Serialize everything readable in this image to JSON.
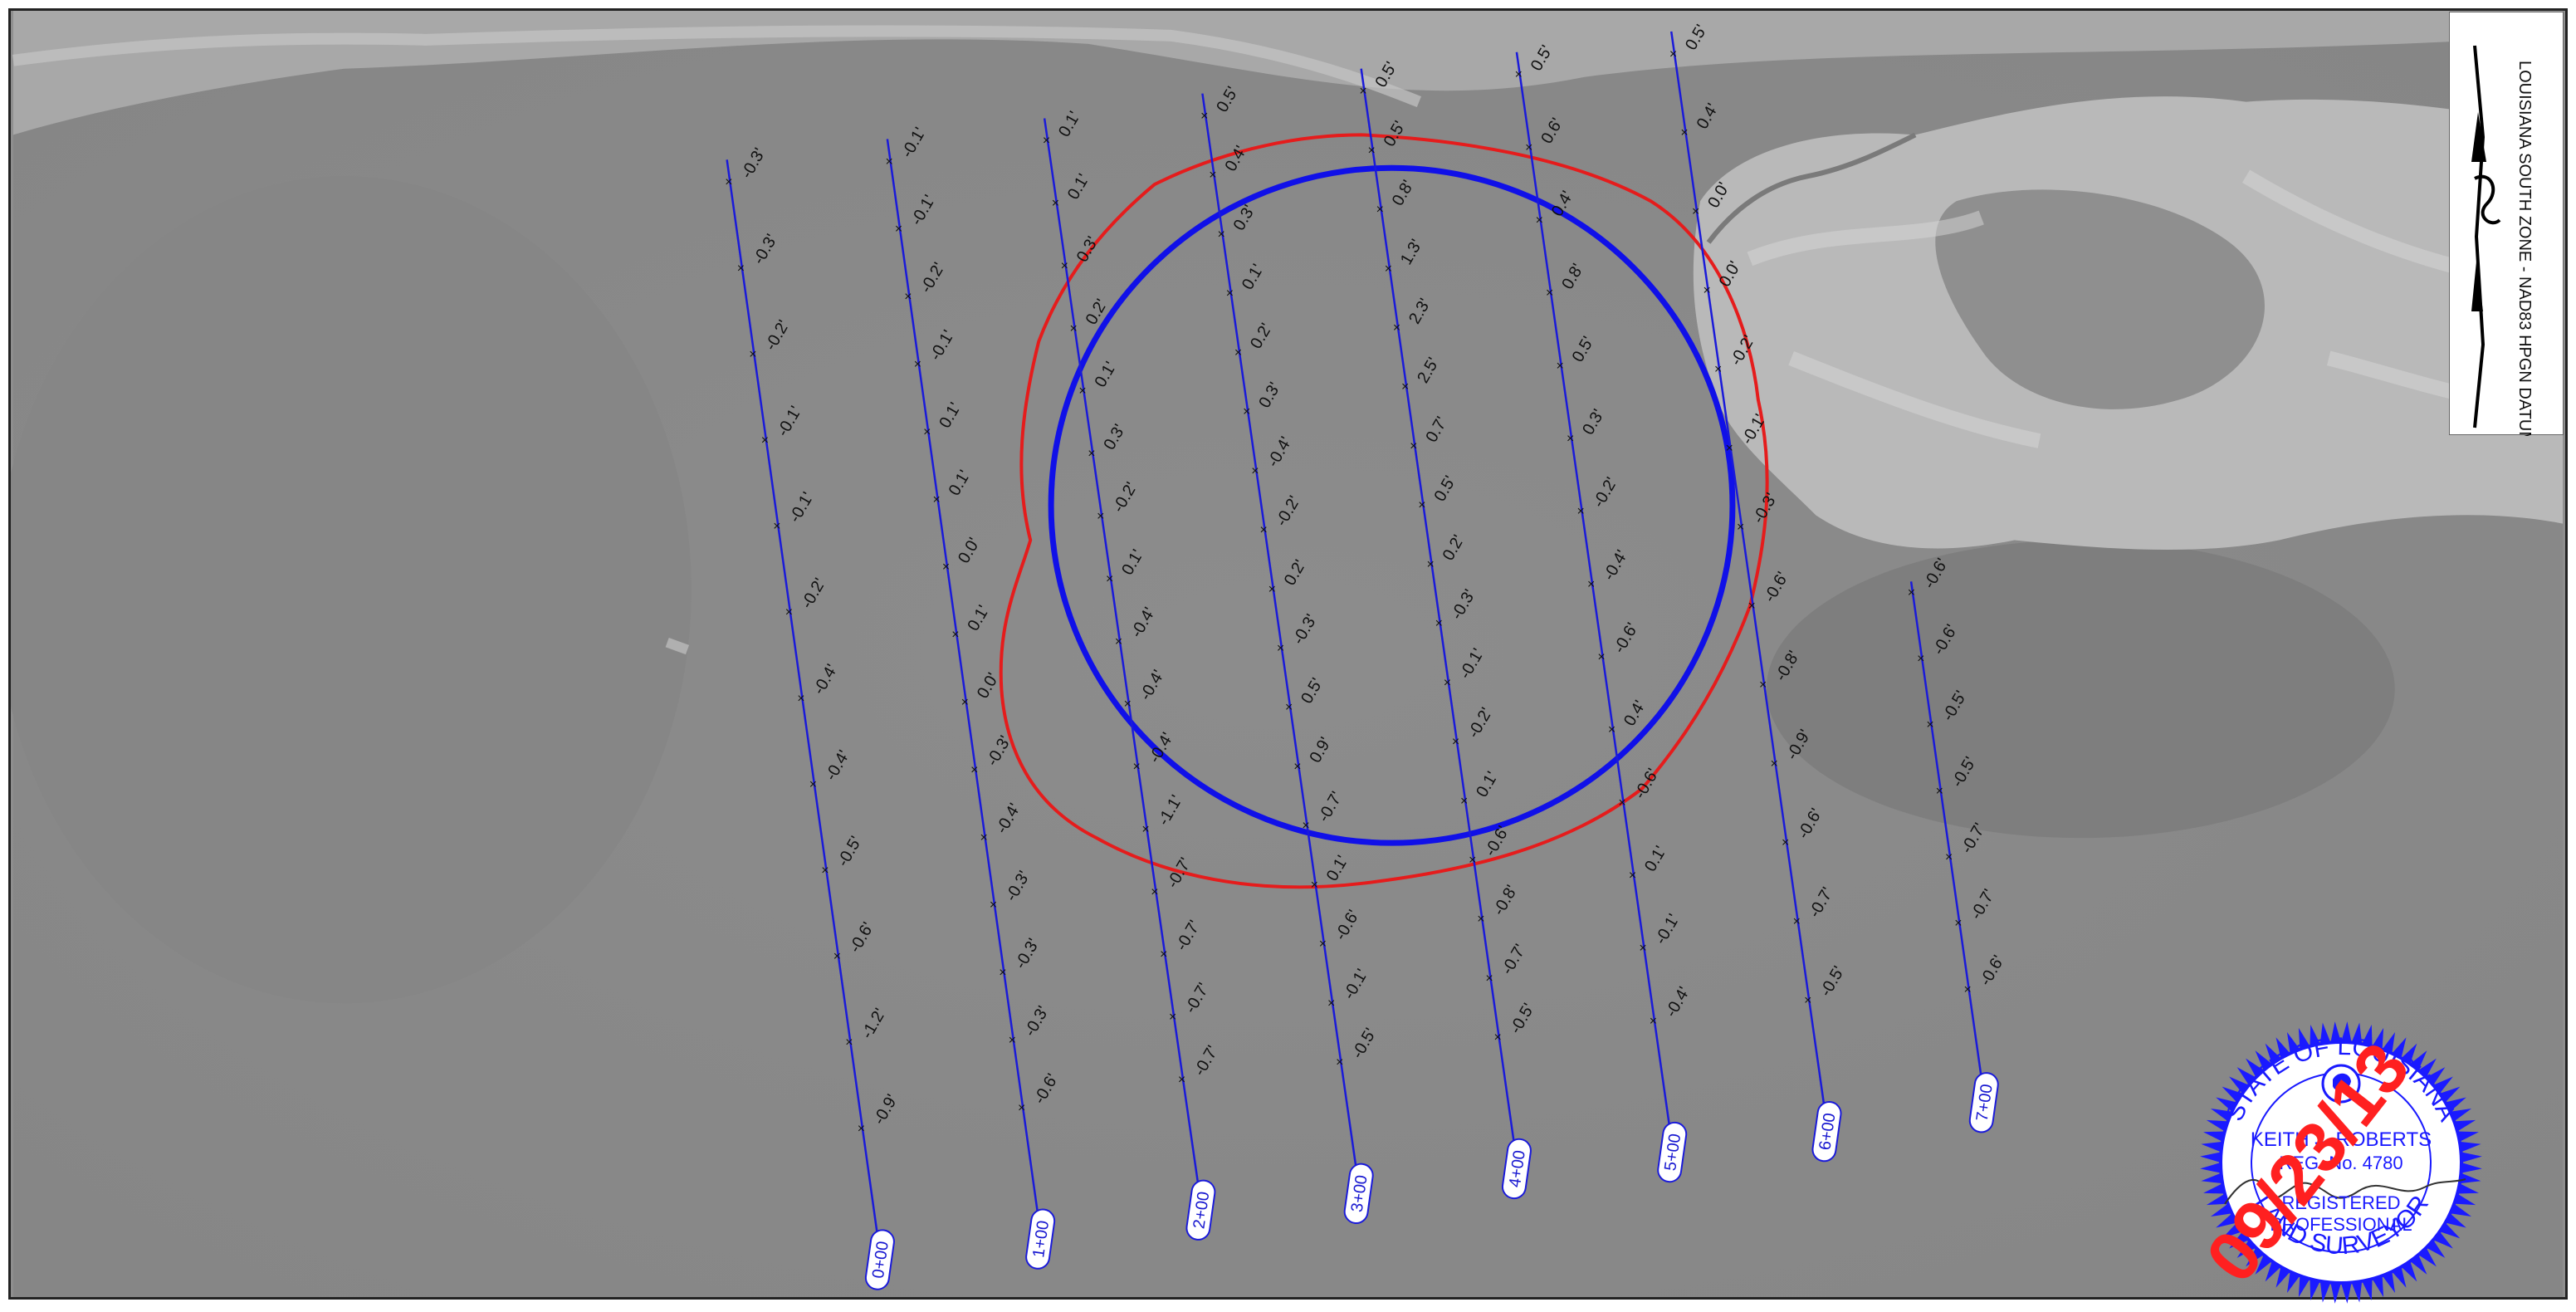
{
  "datum_label": "LOUISIANA SOUTH ZONE - NAD83 HPGN DATUM",
  "stations": [
    {
      "label": "0+00",
      "elevations": [
        "-0.3'",
        "-0.3'",
        "-0.2'",
        "-0.1'",
        "-0.1'",
        "-0.2'",
        "-0.4'",
        "-0.4'",
        "-0.5'",
        "-0.6'",
        "-1.2'",
        "-0.9'"
      ]
    },
    {
      "label": "1+00",
      "elevations": [
        "-0.1'",
        "-0.1'",
        "-0.2'",
        "-0.1'",
        "0.1'",
        "0.1'",
        "0.0'",
        "0.1'",
        "0.0'",
        "-0.3'",
        "-0.4'",
        "-0.3'",
        "-0.3'",
        "-0.3'",
        "-0.6'"
      ]
    },
    {
      "label": "2+00",
      "elevations": [
        "0.1'",
        "0.1'",
        "0.3'",
        "0.2'",
        "0.1'",
        "0.3'",
        "-0.2'",
        "0.1'",
        "-0.4'",
        "-0.4'",
        "-0.4'",
        "-1.1'",
        "-0.7'",
        "-0.7'",
        "-0.7'",
        "-0.7'"
      ]
    },
    {
      "label": "3+00",
      "elevations": [
        "0.5'",
        "0.4'",
        "0.3'",
        "0.1'",
        "0.2'",
        "0.3'",
        "-0.4'",
        "-0.2'",
        "0.2'",
        "-0.3'",
        "0.5'",
        "0.9'",
        "-0.7'",
        "0.1'",
        "-0.6'",
        "-0.1'",
        "-0.5'"
      ]
    },
    {
      "label": "4+00",
      "elevations": [
        "0.5'",
        "0.5'",
        "0.8'",
        "1.3'",
        "2.3'",
        "2.5'",
        "0.7'",
        "0.5'",
        "0.2'",
        "-0.3'",
        "-0.1'",
        "-0.2'",
        "0.1'",
        "-0.6'",
        "-0.8'",
        "-0.7'",
        "-0.5'"
      ]
    },
    {
      "label": "5+00",
      "elevations": [
        "0.5'",
        "0.6'",
        "0.4'",
        "0.8'",
        "0.5'",
        "0.3'",
        "-0.2'",
        "-0.4'",
        "-0.6'",
        "0.4'",
        "-0.6'",
        "0.1'",
        "-0.1'",
        "-0.4'"
      ]
    },
    {
      "label": "6+00",
      "elevations": [
        "0.5'",
        "0.4'",
        "0.0'",
        "0.0'",
        "-0.2'",
        "-0.1'",
        "-0.3'",
        "-0.6'",
        "-0.8'",
        "-0.9'",
        "-0.6'",
        "-0.7'",
        "-0.5'"
      ]
    },
    {
      "label": "7+00",
      "elevations": [
        "-0.6'",
        "-0.6'",
        "-0.5'",
        "-0.5'",
        "-0.7'",
        "-0.7'",
        "-0.6'"
      ]
    }
  ],
  "seal": {
    "state_text": "STATE OF LOUISIANA",
    "name": "KEITH J. ROBERTS",
    "reg_no": "REG. No. 4780",
    "registered": "REGISTERED",
    "professional": "PROFESSIONAL",
    "surveyor": "LAND SURVEYOR",
    "date": "09/23/13",
    "color": "#1a1aff",
    "date_color": "#ff2020"
  },
  "colors": {
    "transect": "#1a1ad9",
    "blue_circle": "#1010e8",
    "red_boundary": "#e51c1c"
  }
}
